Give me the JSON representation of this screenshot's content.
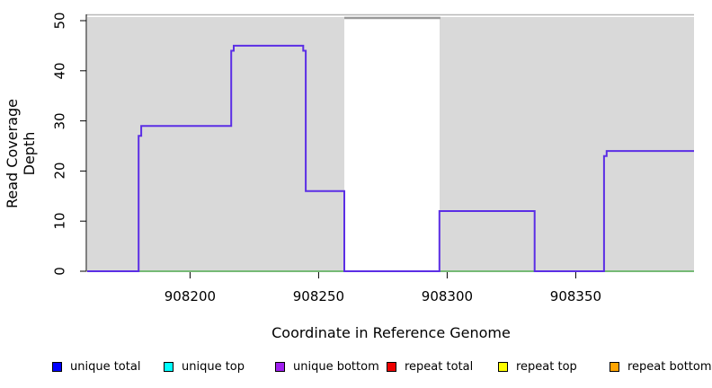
{
  "chart_data": {
    "type": "line",
    "step": "after",
    "title": "",
    "xlabel": "Coordinate in Reference Genome",
    "ylabel": "Read Coverage Depth",
    "xlim": [
      908160,
      908396
    ],
    "ylim": [
      0,
      50
    ],
    "x_ticks": [
      908200,
      908250,
      908300,
      908350
    ],
    "y_ticks": [
      0,
      10,
      20,
      30,
      40,
      50
    ],
    "grid": false,
    "legend_position": "bottom",
    "panel_bg": "#d9d9d9",
    "top_border_color": "#b8b8b8",
    "repeat_region": {
      "x0": 908260,
      "x1": 908297,
      "cap_color": "#999999"
    },
    "axis_color": "#000000",
    "series": [
      {
        "name": "baseline-zero",
        "color": "#55b055",
        "points": [
          [
            908160,
            0
          ],
          [
            908396,
            0
          ]
        ]
      },
      {
        "name": "unique-bottom-coverage",
        "color": "#5B2EE5",
        "points": [
          [
            908160,
            0
          ],
          [
            908180,
            27
          ],
          [
            908181,
            29
          ],
          [
            908216,
            44
          ],
          [
            908217,
            45
          ],
          [
            908244,
            44
          ],
          [
            908245,
            16
          ],
          [
            908260,
            0
          ],
          [
            908297,
            12
          ],
          [
            908334,
            0
          ],
          [
            908361,
            23
          ],
          [
            908362,
            24
          ],
          [
            908396,
            24
          ]
        ]
      }
    ],
    "legend": [
      {
        "label": "unique total",
        "color": "#0000FF"
      },
      {
        "label": "unique top",
        "color": "#00FFFF"
      },
      {
        "label": "unique bottom",
        "color": "#A020F0"
      },
      {
        "label": "repeat total",
        "color": "#EE0000"
      },
      {
        "label": "repeat top",
        "color": "#FFFF00"
      },
      {
        "label": "repeat bottom",
        "color": "#FFA500"
      }
    ]
  }
}
